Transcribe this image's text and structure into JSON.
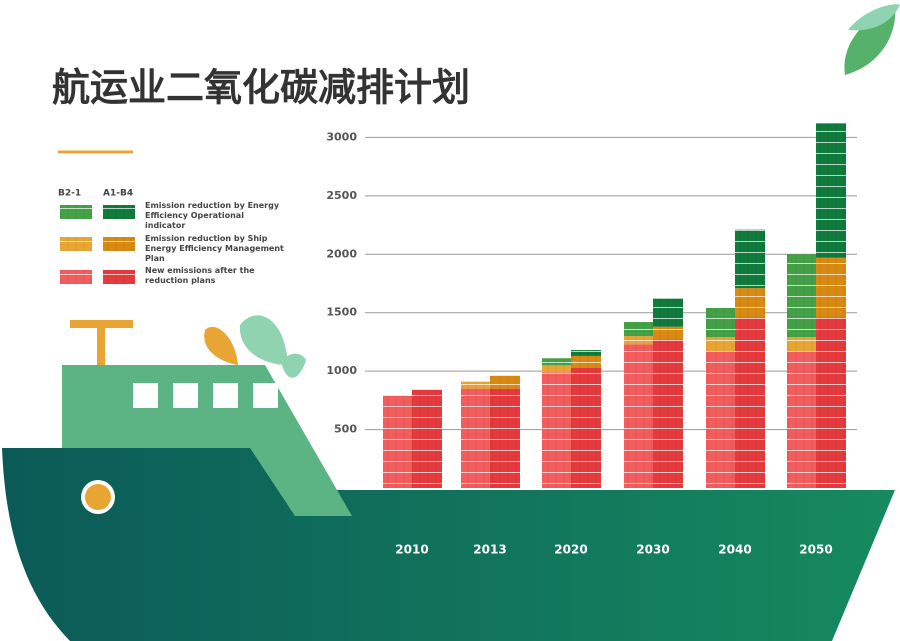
{
  "chart_data": {
    "type": "stacked_bar",
    "title": "航运业二氧化碳减排计划",
    "categories": [
      "2010",
      "2013",
      "2020",
      "2030",
      "2040",
      "2050"
    ],
    "segment_labels": [
      "Emission reduction by Energy Efficiency Operational indicator",
      "Emission reduction by Ship Energy Efficiency Management Plan",
      "New emissions after the reduction plans"
    ],
    "groups": [
      {
        "name": "B2-1",
        "series": [
          {
            "color": "#f25c5c",
            "values": [
              790,
              850,
              990,
              1230,
              1170,
              1170
            ]
          },
          {
            "color": "#e8a534",
            "values": [
              0,
              60,
              60,
              70,
              120,
              120
            ]
          },
          {
            "color": "#43a047",
            "values": [
              0,
              0,
              60,
              120,
              250,
              710
            ]
          }
        ]
      },
      {
        "name": "A1-B4",
        "series": [
          {
            "color": "#e53a3d",
            "values": [
              840,
              850,
              1030,
              1270,
              1460,
              1460
            ]
          },
          {
            "color": "#d98a12",
            "values": [
              0,
              110,
              100,
              110,
              250,
              510
            ]
          },
          {
            "color": "#0f7a3c",
            "values": [
              0,
              0,
              50,
              240,
              500,
              1150
            ]
          }
        ]
      }
    ],
    "ylim": [
      0,
      3200
    ],
    "yticks": [
      500,
      1000,
      1500,
      2000,
      2500,
      3000
    ],
    "grid": true
  }
}
